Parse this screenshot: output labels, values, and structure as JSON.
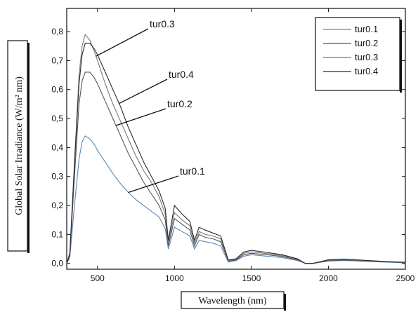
{
  "chart_data": {
    "type": "line",
    "title": "",
    "xlabel": "Wavelength (nm)",
    "ylabel": "Global Solar Irradiance (W/m² nm)",
    "xlim": [
      300,
      2500
    ],
    "ylim": [
      -0.02,
      0.88
    ],
    "x_ticks": [
      500,
      1000,
      1500,
      2000,
      2500
    ],
    "y_ticks": [
      0.0,
      0.1,
      0.2,
      0.3,
      0.4,
      0.5,
      0.6,
      0.7,
      0.8
    ],
    "y_tick_labels": [
      "0,0",
      "0,1",
      "0,2",
      "0,3",
      "0,4",
      "0,5",
      "0,6",
      "0,7",
      "0,8"
    ],
    "x_tick_labels": [
      "500",
      "1000",
      "1500",
      "2000",
      "2500"
    ],
    "grid": false,
    "legend_position": "top-right",
    "x": [
      300,
      320,
      350,
      380,
      400,
      420,
      450,
      480,
      500,
      550,
      600,
      650,
      700,
      750,
      800,
      850,
      900,
      940,
      960,
      1000,
      1050,
      1100,
      1130,
      1160,
      1200,
      1250,
      1300,
      1350,
      1400,
      1450,
      1500,
      1600,
      1700,
      1800,
      1850,
      1900,
      2000,
      2100,
      2200,
      2300,
      2400,
      2500
    ],
    "series": [
      {
        "name": "tur0.1",
        "color": "#5b86b8",
        "values": [
          0.0,
          0.02,
          0.2,
          0.36,
          0.42,
          0.44,
          0.43,
          0.41,
          0.39,
          0.35,
          0.31,
          0.275,
          0.245,
          0.22,
          0.2,
          0.18,
          0.16,
          0.12,
          0.05,
          0.125,
          0.11,
          0.095,
          0.05,
          0.08,
          0.075,
          0.07,
          0.06,
          0.005,
          0.01,
          0.025,
          0.03,
          0.025,
          0.02,
          0.01,
          0.0,
          0.0,
          0.008,
          0.01,
          0.008,
          0.006,
          0.004,
          0.002
        ]
      },
      {
        "name": "tur0.2",
        "color": "#555555",
        "values": [
          0.0,
          0.03,
          0.3,
          0.55,
          0.63,
          0.66,
          0.66,
          0.64,
          0.62,
          0.56,
          0.5,
          0.44,
          0.38,
          0.33,
          0.28,
          0.24,
          0.2,
          0.15,
          0.06,
          0.155,
          0.135,
          0.115,
          0.06,
          0.1,
          0.09,
          0.085,
          0.075,
          0.008,
          0.012,
          0.03,
          0.035,
          0.03,
          0.024,
          0.012,
          0.0,
          0.0,
          0.01,
          0.012,
          0.01,
          0.007,
          0.005,
          0.003
        ]
      },
      {
        "name": "tur0.3",
        "color": "#777777",
        "values": [
          0.0,
          0.035,
          0.35,
          0.65,
          0.75,
          0.79,
          0.77,
          0.73,
          0.7,
          0.62,
          0.55,
          0.49,
          0.43,
          0.37,
          0.32,
          0.28,
          0.23,
          0.17,
          0.07,
          0.175,
          0.15,
          0.13,
          0.07,
          0.11,
          0.1,
          0.095,
          0.085,
          0.01,
          0.014,
          0.035,
          0.04,
          0.034,
          0.027,
          0.014,
          0.0,
          0.0,
          0.012,
          0.014,
          0.011,
          0.008,
          0.006,
          0.003
        ]
      },
      {
        "name": "tur0.4",
        "color": "#2a2a2a",
        "values": [
          0.0,
          0.035,
          0.34,
          0.62,
          0.72,
          0.76,
          0.76,
          0.74,
          0.72,
          0.66,
          0.6,
          0.54,
          0.47,
          0.41,
          0.35,
          0.3,
          0.25,
          0.19,
          0.08,
          0.2,
          0.17,
          0.145,
          0.08,
          0.125,
          0.115,
          0.105,
          0.095,
          0.012,
          0.016,
          0.04,
          0.045,
          0.038,
          0.03,
          0.016,
          0.0,
          0.0,
          0.013,
          0.015,
          0.012,
          0.009,
          0.006,
          0.004
        ]
      }
    ],
    "annotations": [
      {
        "text": "tur0.3",
        "target_series": "tur0.3",
        "target_x": 490
      },
      {
        "text": "tur0.4",
        "target_series": "tur0.4",
        "target_x": 640
      },
      {
        "text": "tur0.2",
        "target_series": "tur0.2",
        "target_x": 620
      },
      {
        "text": "tur0.1",
        "target_series": "tur0.1",
        "target_x": 700
      }
    ]
  }
}
